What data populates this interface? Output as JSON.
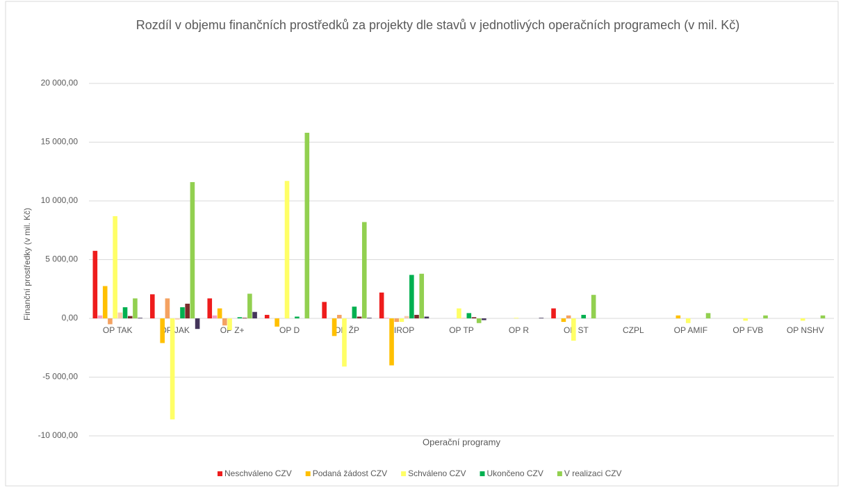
{
  "chart_data": {
    "type": "bar",
    "title": "Rozdíl v objemu finančních prostředků za projekty dle stavů v jednotlivých operačních programech (v mil. Kč)",
    "x_label": "Operační programy",
    "y_label": "Finanční prostředky (v mil. Kč)",
    "categories": [
      "OP TAK",
      "OP JAK",
      "OP Z+",
      "OP D",
      "OP ŽP",
      "IROP",
      "OP TP",
      "OP R",
      "OP ST",
      "CZPL",
      "OP AMIF",
      "OP FVB",
      "OP NSHV"
    ],
    "series": [
      {
        "name": "Neschváleno CZV",
        "color": "#ee1c1c",
        "values": [
          5750,
          2050,
          1700,
          300,
          1400,
          2200,
          0,
          0,
          850,
          0,
          0,
          0,
          0
        ]
      },
      {
        "color": "#f4a0c4",
        "values": [
          250,
          0,
          250,
          0,
          0,
          50,
          0,
          0,
          0,
          0,
          0,
          0,
          0
        ]
      },
      {
        "name": "Podaná žádost CZV",
        "color": "#ffc000",
        "values": [
          2750,
          -2100,
          850,
          -700,
          -1500,
          -4000,
          0,
          0,
          -300,
          0,
          250,
          0,
          0
        ]
      },
      {
        "color": "#f4a261",
        "values": [
          -500,
          1700,
          -600,
          0,
          300,
          -300,
          0,
          0,
          250,
          0,
          0,
          0,
          0
        ]
      },
      {
        "name": "Schváleno CZV",
        "color": "#ffff66",
        "values": [
          8700,
          -8600,
          -1000,
          11700,
          -4100,
          -300,
          850,
          50,
          -1900,
          0,
          -400,
          -200,
          -200
        ]
      },
      {
        "color": "#f8cbad",
        "values": [
          500,
          -100,
          0,
          0,
          0,
          200,
          50,
          0,
          0,
          0,
          0,
          0,
          0
        ]
      },
      {
        "name": "Ukončeno CZV",
        "color": "#00b050",
        "values": [
          950,
          950,
          100,
          150,
          1000,
          3700,
          450,
          0,
          300,
          0,
          0,
          0,
          0
        ]
      },
      {
        "color": "#7b2b2b",
        "values": [
          200,
          1250,
          50,
          0,
          150,
          300,
          100,
          0,
          0,
          0,
          0,
          0,
          0
        ]
      },
      {
        "name": "V realizaci CZV",
        "color": "#92d050",
        "values": [
          1700,
          11600,
          2100,
          15800,
          8200,
          3800,
          -400,
          0,
          2000,
          0,
          450,
          250,
          250
        ]
      },
      {
        "color": "#44355b",
        "values": [
          50,
          -900,
          550,
          0,
          50,
          150,
          -150,
          50,
          0,
          0,
          0,
          0,
          0
        ]
      }
    ],
    "ylim": [
      -10000,
      20000
    ],
    "yticks": [
      {
        "value": -10000,
        "label": "-10 000,00"
      },
      {
        "value": -5000,
        "label": "-5 000,00"
      },
      {
        "value": 0,
        "label": "0,00"
      },
      {
        "value": 5000,
        "label": "5 000,00"
      },
      {
        "value": 10000,
        "label": "10 000,00"
      },
      {
        "value": 15000,
        "label": "15 000,00"
      },
      {
        "value": 20000,
        "label": "20 000,00"
      }
    ],
    "grid": true,
    "legend": "bottom"
  }
}
